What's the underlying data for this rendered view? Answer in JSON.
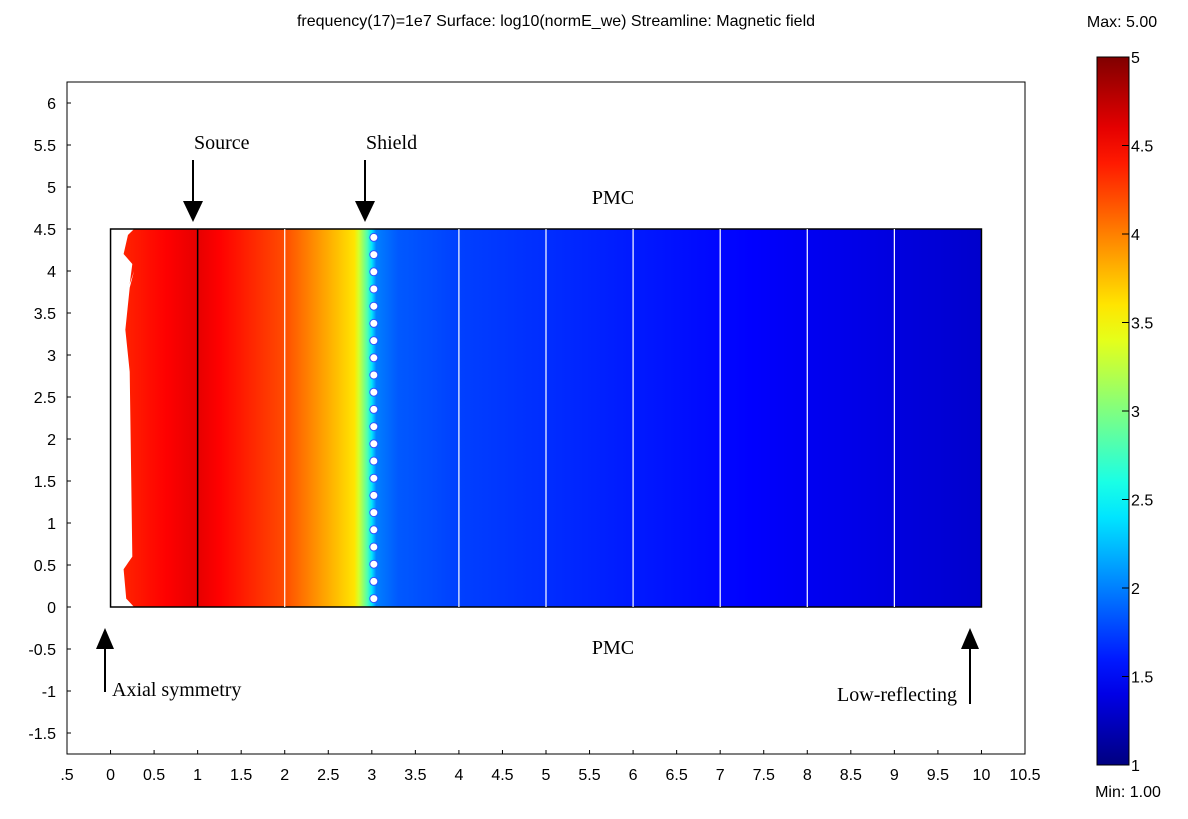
{
  "chart_data": {
    "type": "heatmap",
    "title": "frequency(17)=1e7    Surface: log10(normE_we)    Streamline: Magnetic field",
    "xlim": [
      -0.5,
      10.5
    ],
    "ylim": [
      -1.75,
      6.25
    ],
    "x_ticks": [
      ".5",
      "0",
      "0.5",
      "1",
      "1.5",
      "2",
      "2.5",
      "3",
      "3.5",
      "4",
      "4.5",
      "5",
      "5.5",
      "6",
      "6.5",
      "7",
      "7.5",
      "8",
      "8.5",
      "9",
      "9.5",
      "10",
      "10.5"
    ],
    "y_ticks": [
      "6",
      "5.5",
      "5",
      "4.5",
      "4",
      "3.5",
      "3",
      "2.5",
      "2",
      "1.5",
      "1",
      "0.5",
      "0",
      "-0.5",
      "-1",
      "-1.5"
    ],
    "domain": {
      "x": [
        0,
        10
      ],
      "y": [
        0,
        4.5
      ]
    },
    "surface_profile": {
      "x": [
        0.1,
        1,
        2,
        2.8,
        2.95,
        3.05,
        3.3,
        4,
        6,
        10
      ],
      "value": [
        4.35,
        4.6,
        4.2,
        3.6,
        2.8,
        2.0,
        1.85,
        1.75,
        1.6,
        1.3
      ]
    },
    "streamlines_x": [
      1,
      2,
      4,
      5,
      6,
      7,
      8,
      9
    ],
    "source_line_x": 1,
    "shield": {
      "x": 3,
      "y_from": 0.1,
      "y_to": 4.4,
      "count": 22
    },
    "colorbar": {
      "max_label": "Max: 5.00",
      "min_label": "Min: 1.00",
      "range": [
        1,
        5
      ],
      "ticks": [
        "5",
        "4.5",
        "4",
        "3.5",
        "3",
        "2.5",
        "2",
        "1.5",
        "1"
      ]
    },
    "annotations": {
      "source": "Source",
      "shield": "Shield",
      "pmc_top": "PMC",
      "pmc_bottom": "PMC",
      "axial": "Axial symmetry",
      "low_reflecting": "Low-reflecting"
    }
  }
}
